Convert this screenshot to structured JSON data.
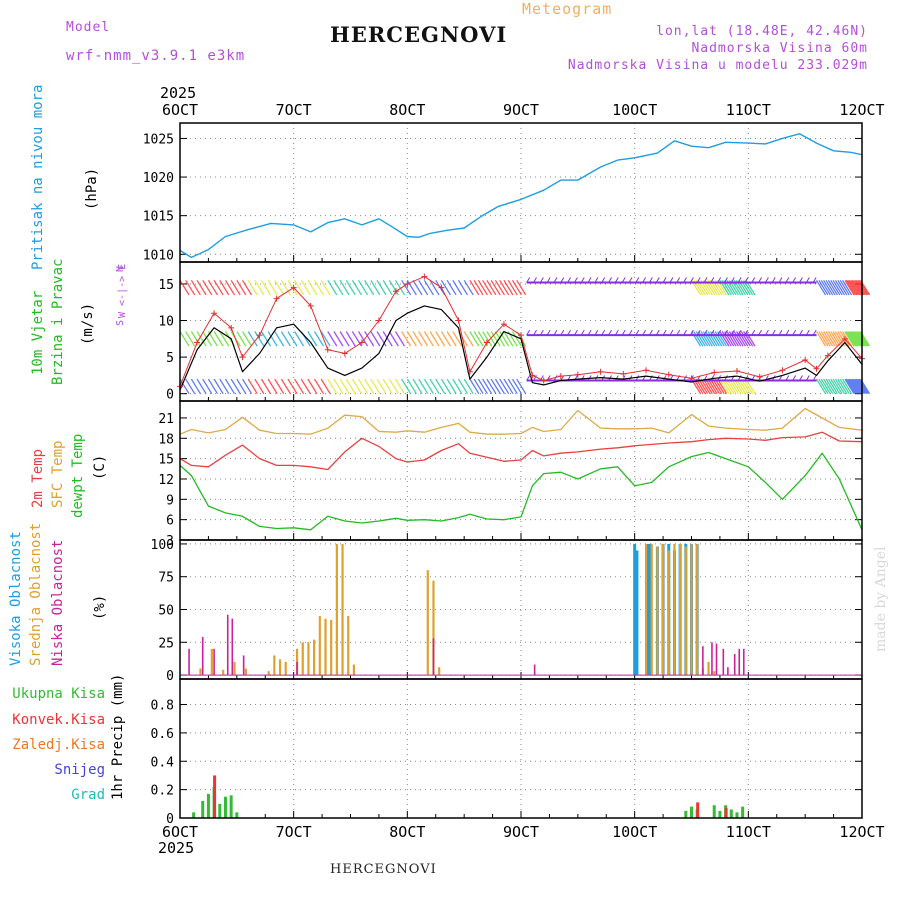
{
  "header": {
    "title": "HERCEGNOVI",
    "subtitle": "Meteogram",
    "model_label": "Model",
    "model_name": "wrf-nmm_v3.9.1 e3km",
    "lonlat": "lon,lat (18.48E, 42.46N)",
    "elevation": "Nadmorska Visina 60m",
    "model_elevation": "Nadmorska Visina u modelu 233.029m",
    "footer": "HERCEGNOVI",
    "signature": "made by Angel"
  },
  "time_axis": {
    "year": "2025",
    "ticks": [
      "6OCT",
      "7OCT",
      "8OCT",
      "9OCT",
      "10OCT",
      "11OCT",
      "12OCT"
    ],
    "start_day": 6,
    "end_day": 12
  },
  "panels": {
    "pressure": {
      "label": "Pritisak na nivou mora",
      "unit": "(hPa)"
    },
    "wind": {
      "label1": "10m Vjetar",
      "label2": "Brzina i Pravac",
      "unit": "(m/s)",
      "compass_top": "N",
      "compass_mid": "W <-|-> E",
      "compass_bottom": "S"
    },
    "temp": {
      "label_2m": "2m Temp",
      "label_sfc": "SFC Temp",
      "label_dew": "dewpt Temp",
      "unit": "(C)"
    },
    "cloud": {
      "label_high": "Visoka Oblacnost",
      "label_mid": "Srednja Oblacnost",
      "label_low": "Niska Oblacnost",
      "unit": "(%)"
    },
    "precip": {
      "unit_label": "1hr Precip (mm)",
      "legend": [
        {
          "label": "Ukupna Kisa",
          "color": "#33bb33"
        },
        {
          "label": "Konvek.Kisa",
          "color": "#ee3333"
        },
        {
          "label": "Zaledj.Kisa",
          "color": "#ee7722"
        },
        {
          "label": "Snijeg",
          "color": "#4444dd"
        },
        {
          "label": "Grad",
          "color": "#22bbbb"
        }
      ]
    }
  },
  "colors": {
    "pressure": "#1e9ee0",
    "t2m": "#e84040",
    "sfc": "#e0a848",
    "dew": "#22bb22",
    "high_cloud": "#1e9ee0",
    "mid_cloud": "#e0a030",
    "low_cloud": "#cc2299",
    "wind_speed": "#000000",
    "wind_gust": "#e03030",
    "wind_arrows": "#8a2be2"
  },
  "chart_data": [
    {
      "type": "line",
      "title": "Pritisak na nivou mora",
      "ylabel": "(hPa)",
      "ylim": [
        1009,
        1027
      ],
      "yticks": [
        1010,
        1015,
        1020,
        1025
      ],
      "x": [
        6.0,
        6.1,
        6.25,
        6.4,
        6.6,
        6.8,
        7.0,
        7.15,
        7.3,
        7.45,
        7.6,
        7.75,
        7.85,
        8.0,
        8.1,
        8.2,
        8.35,
        8.5,
        8.65,
        8.8,
        9.0,
        9.2,
        9.35,
        9.5,
        9.7,
        9.85,
        10.0,
        10.2,
        10.35,
        10.5,
        10.65,
        10.8,
        11.0,
        11.15,
        11.3,
        11.45,
        11.6,
        11.75,
        11.9,
        12.0
      ],
      "series": [
        {
          "name": "Pritisak",
          "values": [
            1010.5,
            1009.6,
            1010.6,
            1012.3,
            1013.2,
            1014.0,
            1013.8,
            1012.9,
            1014.1,
            1014.6,
            1013.8,
            1014.6,
            1013.7,
            1012.3,
            1012.2,
            1012.7,
            1013.1,
            1013.4,
            1014.9,
            1016.2,
            1017.1,
            1018.3,
            1019.6,
            1019.6,
            1021.3,
            1022.2,
            1022.5,
            1023.1,
            1024.7,
            1024.0,
            1023.8,
            1024.5,
            1024.4,
            1024.3,
            1025.0,
            1025.6,
            1024.4,
            1023.4,
            1023.2,
            1022.9
          ]
        }
      ]
    },
    {
      "type": "line",
      "title": "10m Vjetar Brzina i Pravac",
      "ylabel": "(m/s)",
      "ylim": [
        -1,
        18
      ],
      "yticks": [
        0,
        5,
        10,
        15
      ],
      "x": [
        6.0,
        6.15,
        6.3,
        6.45,
        6.55,
        6.7,
        6.85,
        7.0,
        7.15,
        7.3,
        7.45,
        7.6,
        7.75,
        7.9,
        8.0,
        8.15,
        8.3,
        8.45,
        8.55,
        8.7,
        8.85,
        9.0,
        9.1,
        9.2,
        9.35,
        9.5,
        9.7,
        9.9,
        10.1,
        10.3,
        10.5,
        10.7,
        10.9,
        11.1,
        11.3,
        11.5,
        11.6,
        11.7,
        11.85,
        12.0
      ],
      "series": [
        {
          "name": "Brzina",
          "values": [
            0.5,
            6,
            9,
            7.5,
            3,
            5.5,
            9,
            9.5,
            7,
            3.5,
            2.5,
            3.5,
            5.5,
            10,
            11,
            12,
            11.5,
            9,
            2,
            5,
            8.5,
            7.5,
            1.5,
            1.2,
            1.8,
            2.0,
            2.2,
            2.0,
            2.4,
            2.0,
            1.6,
            2.1,
            2.4,
            1.7,
            2.5,
            3.5,
            2.5,
            4.5,
            7,
            4
          ]
        },
        {
          "name": "Udar",
          "values": [
            1,
            7,
            11,
            9,
            5,
            8,
            13,
            14.5,
            12,
            6,
            5.5,
            7,
            10,
            14,
            15,
            16,
            14.5,
            10,
            3,
            7,
            9.5,
            8,
            2.5,
            1.8,
            2.4,
            2.6,
            3.0,
            2.7,
            3.2,
            2.6,
            2.1,
            2.9,
            3.1,
            2.3,
            3.2,
            4.6,
            3.4,
            5.2,
            7.5,
            4.8
          ]
        }
      ]
    },
    {
      "type": "line",
      "title": "2m / SFC / dewpt Temp",
      "ylabel": "(C)",
      "ylim": [
        3,
        23.5
      ],
      "yticks": [
        3,
        6,
        9,
        12,
        15,
        18,
        21
      ],
      "x": [
        6.0,
        6.1,
        6.25,
        6.4,
        6.55,
        6.7,
        6.85,
        7.0,
        7.15,
        7.3,
        7.45,
        7.6,
        7.75,
        7.9,
        8.0,
        8.15,
        8.3,
        8.45,
        8.55,
        8.7,
        8.85,
        9.0,
        9.1,
        9.2,
        9.35,
        9.5,
        9.7,
        9.85,
        10.0,
        10.15,
        10.3,
        10.5,
        10.65,
        10.8,
        11.0,
        11.15,
        11.3,
        11.5,
        11.65,
        11.8,
        12.0
      ],
      "series": [
        {
          "name": "2m Temp",
          "values": [
            15,
            14,
            13.8,
            15.5,
            17,
            15,
            14,
            14,
            13.8,
            13.4,
            16,
            18,
            16.8,
            15,
            14.5,
            14.8,
            16.2,
            17.2,
            15.8,
            15.2,
            14.6,
            14.8,
            16.2,
            15.4,
            15.8,
            16,
            16.4,
            16.6,
            16.9,
            17.1,
            17.3,
            17.5,
            17.8,
            18,
            17.9,
            17.7,
            18.1,
            18.2,
            18.9,
            17.6,
            17.5
          ]
        },
        {
          "name": "SFC Temp",
          "values": [
            18.6,
            19.3,
            18.8,
            19.3,
            21.1,
            19.2,
            18.7,
            18.7,
            18.6,
            19.5,
            21.4,
            21.2,
            19.0,
            18.9,
            19.1,
            18.9,
            19.6,
            20.2,
            18.9,
            18.6,
            18.6,
            18.7,
            19.6,
            19.0,
            19.3,
            22.1,
            19.5,
            19.4,
            19.4,
            19.5,
            18.8,
            21.5,
            19.8,
            19.5,
            19.3,
            19.2,
            19.5,
            22.4,
            21.0,
            19.6,
            19.2
          ]
        },
        {
          "name": "dewpt Temp",
          "values": [
            14,
            12.5,
            8,
            7,
            6.5,
            5,
            4.7,
            4.8,
            4.5,
            6.5,
            5.8,
            5.5,
            5.8,
            6.2,
            5.9,
            6.0,
            5.8,
            6.3,
            6.8,
            6.1,
            6.0,
            6.4,
            11,
            12.8,
            13,
            12,
            13.5,
            13.8,
            11,
            11.5,
            13.8,
            15.3,
            15.9,
            15.0,
            13.8,
            11.5,
            9,
            12.5,
            15.8,
            12.0,
            4.5
          ]
        }
      ]
    },
    {
      "type": "bar",
      "title": "Oblacnost",
      "ylabel": "(%)",
      "ylim": [
        -3,
        103
      ],
      "yticks": [
        0,
        25,
        50,
        75,
        100
      ],
      "series": [
        {
          "name": "Visoka Oblacnost",
          "x": [
            10.0,
            10.02,
            10.12,
            10.14,
            10.2,
            10.25,
            10.3,
            10.35,
            10.4,
            10.45,
            10.5,
            10.55
          ],
          "values": [
            100,
            95,
            100,
            100,
            98,
            100,
            100,
            95,
            100,
            100,
            100,
            100
          ]
        },
        {
          "name": "Srednja Oblacnost",
          "x": [
            6.18,
            6.28,
            6.38,
            6.48,
            6.58,
            6.78,
            6.83,
            6.88,
            6.93,
            7.03,
            7.08,
            7.13,
            7.18,
            7.23,
            7.28,
            7.33,
            7.38,
            7.43,
            7.48,
            7.53,
            8.18,
            8.23,
            8.28,
            10.1,
            10.15,
            10.2,
            10.25,
            10.3,
            10.35,
            10.4,
            10.45,
            10.5,
            10.55,
            10.6,
            10.65,
            10.7
          ],
          "values": [
            5,
            20,
            4,
            10,
            5,
            3,
            15,
            12,
            10,
            20,
            25,
            25,
            27,
            45,
            43,
            42,
            100,
            100,
            45,
            8,
            80,
            72,
            6,
            100,
            100,
            98,
            100,
            95,
            100,
            100,
            98,
            100,
            100,
            5,
            10,
            3
          ]
        },
        {
          "name": "Niska Oblacnost",
          "x": [
            6.08,
            6.2,
            6.3,
            6.42,
            6.46,
            6.56,
            7.03,
            8.23,
            9.12,
            10.6,
            10.68,
            10.72,
            10.78,
            10.82,
            10.88,
            10.92,
            10.96
          ],
          "values": [
            20,
            29,
            20,
            46,
            43,
            15,
            10,
            28,
            8,
            22,
            25,
            24,
            20,
            6,
            16,
            20,
            20
          ]
        }
      ]
    },
    {
      "type": "bar",
      "title": "1hr Precip",
      "ylabel": "(mm)",
      "ylim": [
        0,
        0.98
      ],
      "yticks": [
        0,
        0.2,
        0.4,
        0.6,
        0.8
      ],
      "series": [
        {
          "name": "Ukupna Kisa",
          "x": [
            6.12,
            6.2,
            6.25,
            6.3,
            6.35,
            6.4,
            6.45,
            6.5,
            10.45,
            10.5,
            10.55,
            10.7,
            10.75,
            10.8,
            10.85,
            10.9,
            10.95
          ],
          "values": [
            0.04,
            0.12,
            0.17,
            0.22,
            0.1,
            0.15,
            0.16,
            0.04,
            0.05,
            0.08,
            0.06,
            0.09,
            0.05,
            0.09,
            0.06,
            0.04,
            0.08
          ]
        },
        {
          "name": "Konvek.Kisa",
          "x": [
            6.3,
            10.55,
            10.8
          ],
          "values": [
            0.3,
            0.11,
            0.07
          ]
        }
      ]
    }
  ]
}
